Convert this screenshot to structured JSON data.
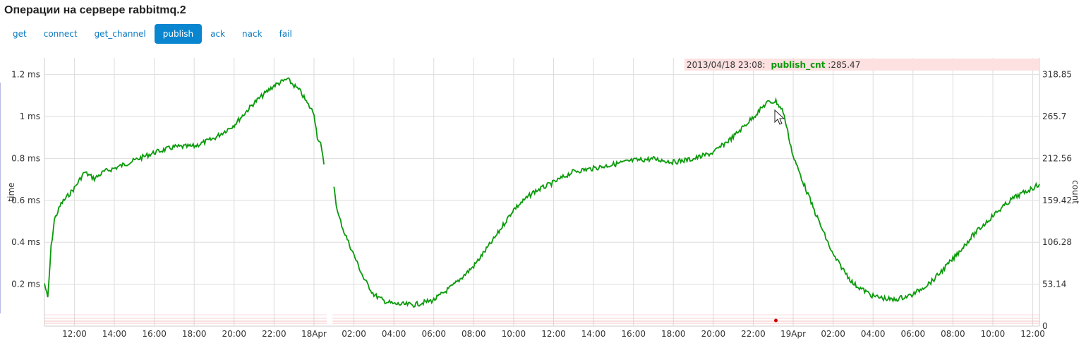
{
  "page": {
    "title": "Операции на сервере rabbitmq.2"
  },
  "tabs": [
    {
      "label": "get",
      "active": false
    },
    {
      "label": "connect",
      "active": false
    },
    {
      "label": "get_channel",
      "active": false
    },
    {
      "label": "publish",
      "active": true
    },
    {
      "label": "ack",
      "active": false
    },
    {
      "label": "nack",
      "active": false
    },
    {
      "label": "fail",
      "active": false
    }
  ],
  "colors": {
    "series": "#0a9a0a",
    "grid": "#dddddd",
    "tab_active": "#0a85cf",
    "tooltip_bg": "#fde0e0",
    "crosshair": "#8888cc",
    "noise": "#f3b5b5"
  },
  "tooltip": {
    "time": "2013/04/18 23:08:",
    "series": "publish_cnt",
    "value": ":285.47"
  },
  "chart_data": {
    "type": "line",
    "left_axis": {
      "label": "time",
      "ticks": [
        "0.2 ms",
        "0.4 ms",
        "0.6 ms",
        "0.8 ms",
        "1 ms",
        "1.2 ms"
      ],
      "tick_values": [
        0.2,
        0.4,
        0.6,
        0.8,
        1.0,
        1.2
      ]
    },
    "right_axis": {
      "label": "count",
      "ticks": [
        "0",
        "53.14",
        "106.28",
        "159.42",
        "212.56",
        "265.7",
        "318.85"
      ],
      "tick_values": [
        0,
        53.14,
        106.28,
        159.42,
        212.56,
        265.7,
        318.85
      ],
      "ylim": [
        0,
        340
      ]
    },
    "x_axis": {
      "range_hours": [
        "2013-04-17 10:30",
        "2013-04-19 12:20"
      ],
      "tick_labels": [
        "12:00",
        "14:00",
        "16:00",
        "18:00",
        "20:00",
        "22:00",
        "18Apr",
        "02:00",
        "04:00",
        "06:00",
        "08:00",
        "10:00",
        "12:00",
        "14:00",
        "16:00",
        "18:00",
        "20:00",
        "22:00",
        "19Apr",
        "02:00",
        "04:00",
        "06:00",
        "08:00",
        "10:00",
        "12:00"
      ],
      "tick_hours": [
        1.5,
        3.5,
        5.5,
        7.5,
        9.5,
        11.5,
        13.5,
        15.5,
        17.5,
        19.5,
        21.5,
        23.5,
        25.5,
        27.5,
        29.5,
        31.5,
        33.5,
        35.5,
        37.5,
        39.5,
        41.5,
        43.5,
        45.5,
        47.5,
        49.5
      ]
    },
    "grid": true,
    "crosshair_time": "2013/04/18 20:50",
    "series": [
      {
        "name": "publish_cnt",
        "axis": "right",
        "segments": [
          {
            "x": [
              "2013-04-17 10:30",
              "2013-04-17 10:40",
              "2013-04-17 10:50",
              "2013-04-17 11:00",
              "2013-04-17 11:20",
              "2013-04-17 11:40",
              "2013-04-17 12:00",
              "2013-04-17 12:30",
              "2013-04-17 13:00",
              "2013-04-17 13:30",
              "2013-04-17 14:00",
              "2013-04-17 15:00",
              "2013-04-17 16:00",
              "2013-04-17 17:00",
              "2013-04-17 18:00",
              "2013-04-17 19:00",
              "2013-04-17 20:00",
              "2013-04-17 21:00",
              "2013-04-17 22:00",
              "2013-04-17 22:40",
              "2013-04-17 23:00",
              "2013-04-17 23:20",
              "2013-04-17 23:40",
              "2013-04-18 00:00",
              "2013-04-18 00:10",
              "2013-04-18 00:20",
              "2013-04-18 00:30"
            ],
            "y": [
              54,
              35,
              100,
              135,
              155,
              165,
              175,
              195,
              187,
              196,
              200,
              210,
              220,
              227,
              228,
              238,
              255,
              283,
              305,
              313,
              305,
              297,
              282,
              270,
              240,
              230,
              205
            ]
          },
          {
            "x": [
              "2013-04-18 01:00",
              "2013-04-18 01:10",
              "2013-04-18 01:30",
              "2013-04-18 02:00",
              "2013-04-18 02:30",
              "2013-04-18 03:00",
              "2013-04-18 03:30",
              "2013-04-18 04:00",
              "2013-04-18 05:00",
              "2013-04-18 06:00",
              "2013-04-18 07:00",
              "2013-04-18 08:00",
              "2013-04-18 09:00",
              "2013-04-18 10:00",
              "2013-04-18 11:00",
              "2013-04-18 12:00",
              "2013-04-18 13:00",
              "2013-04-18 14:00",
              "2013-04-18 15:00",
              "2013-04-18 16:00",
              "2013-04-18 17:00",
              "2013-04-18 18:00",
              "2013-04-18 19:00",
              "2013-04-18 20:00",
              "2013-04-18 21:00",
              "2013-04-18 22:00",
              "2013-04-18 22:40",
              "2013-04-18 23:08",
              "2013-04-18 23:30",
              "2013-04-19 00:00",
              "2013-04-19 01:00",
              "2013-04-19 02:00",
              "2013-04-19 03:00",
              "2013-04-19 04:00",
              "2013-04-19 05:00",
              "2013-04-19 06:00",
              "2013-04-19 07:00",
              "2013-04-19 08:00",
              "2013-04-19 09:00",
              "2013-04-19 10:00",
              "2013-04-19 11:00",
              "2013-04-19 12:00",
              "2013-04-19 12:20"
            ],
            "y": [
              178,
              145,
              120,
              90,
              60,
              40,
              32,
              28,
              27,
              33,
              52,
              76,
              110,
              148,
              170,
              182,
              196,
              200,
              205,
              210,
              212,
              208,
              212,
              220,
              240,
              265,
              283,
              285,
              272,
              215,
              150,
              90,
              54,
              38,
              33,
              40,
              58,
              85,
              115,
              140,
              162,
              175,
              180
            ]
          }
        ]
      },
      {
        "name": "time",
        "axis": "left",
        "values_note": "",
        "segments": []
      }
    ]
  }
}
